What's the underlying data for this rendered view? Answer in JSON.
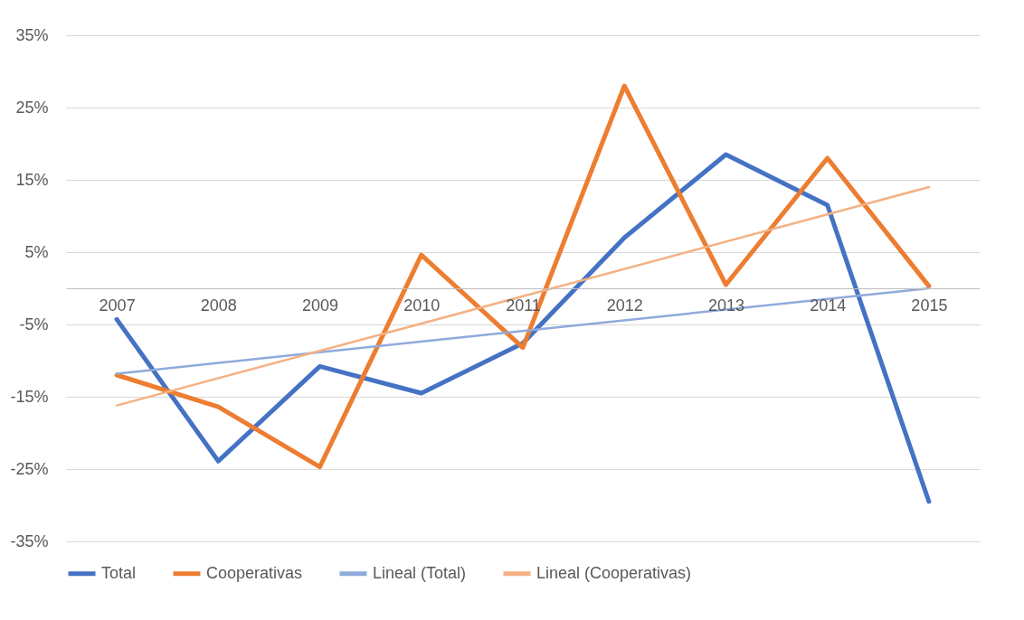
{
  "chart_data": {
    "type": "line",
    "categories": [
      "2007",
      "2008",
      "2009",
      "2010",
      "2011",
      "2012",
      "2013",
      "2014",
      "2015"
    ],
    "series": [
      {
        "name": "Total",
        "color": "#4472c4",
        "values": [
          -4.3,
          -23.9,
          -10.8,
          -14.5,
          -7.6,
          7,
          18.5,
          11.5,
          -29.5
        ]
      },
      {
        "name": "Cooperativas",
        "color": "#ed7d31",
        "values": [
          -12,
          -16.4,
          -24.7,
          4.6,
          -8.2,
          28,
          0.5,
          18,
          0.3
        ]
      },
      {
        "name": "Lineal (Total)",
        "color": "#8faadc",
        "type": "line",
        "values": [
          -11.8,
          null,
          null,
          null,
          null,
          null,
          null,
          null,
          0
        ]
      },
      {
        "name": "Lineal (Cooperativas)",
        "color": "#f4b183",
        "type": "line",
        "values": [
          -16.2,
          null,
          null,
          null,
          null,
          null,
          null,
          null,
          14
        ]
      }
    ],
    "ylim": [
      -35,
      35
    ],
    "yticks": [
      {
        "value": -35,
        "label": "-35%"
      },
      {
        "value": -25,
        "label": "-25%"
      },
      {
        "value": -15,
        "label": "-15%"
      },
      {
        "value": -5,
        "label": "-5%"
      },
      {
        "value": 5,
        "label": "5%"
      },
      {
        "value": 15,
        "label": "15%"
      },
      {
        "value": 25,
        "label": "25%"
      },
      {
        "value": 35,
        "label": "35%"
      }
    ],
    "grid": "y",
    "legend": "bottom",
    "marker": "none",
    "line_style": "solid"
  }
}
